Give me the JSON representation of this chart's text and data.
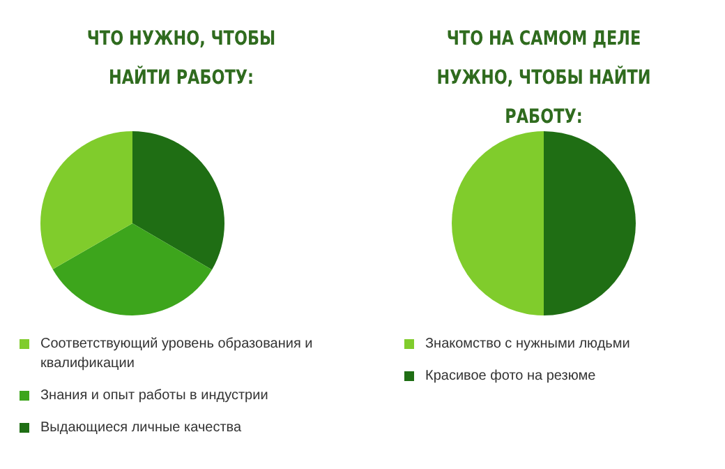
{
  "chart_data": [
    {
      "type": "pie",
      "title": "ЧТО НУЖНО, ЧТОБЫ НАЙТИ РАБОТУ:",
      "categories": [
        "Соответствующий уровень образования и квалификации",
        "Знания и опыт работы в индустрии",
        "Выдающиеся личные качества"
      ],
      "values": [
        33.3,
        33.3,
        33.4
      ],
      "colors": [
        "#80cc2c",
        "#3da51c",
        "#1f6e14"
      ],
      "legend": "bottom"
    },
    {
      "type": "pie",
      "title": "ЧТО НА САМОМ ДЕЛЕ НУЖНО, ЧТОБЫ НАЙТИ РАБОТУ:",
      "categories": [
        "Знакомство с нужными людьми",
        "Красивое фото на резюме"
      ],
      "values": [
        50,
        50
      ],
      "colors": [
        "#80cc2c",
        "#1f6e14"
      ],
      "legend": "bottom"
    }
  ]
}
